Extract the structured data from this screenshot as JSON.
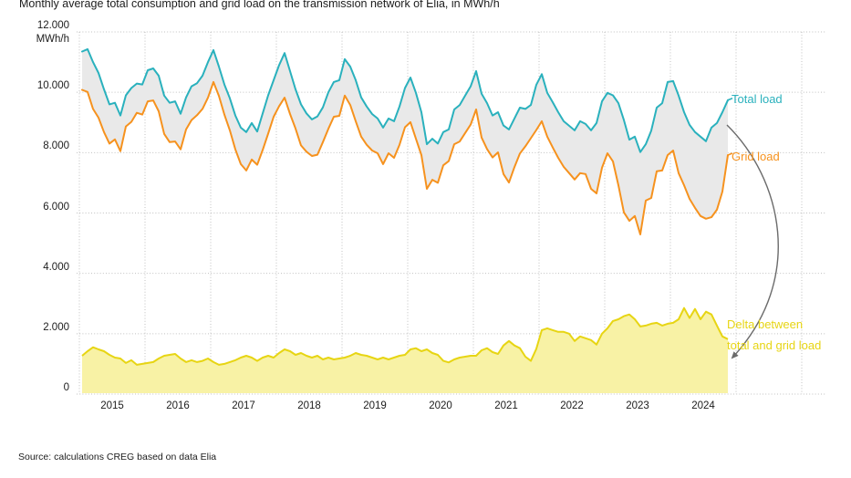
{
  "title": "Monthly average total consumption and grid load on the transmission network of Elia, in MWh/h",
  "source": "Source: calculations CREG based on data Elia",
  "y_axis": {
    "unit": "MWh/h",
    "ticks": [
      {
        "label": "12.000",
        "value": 12000
      },
      {
        "label": "10.000",
        "value": 10000
      },
      {
        "label": "8.000",
        "value": 8000
      },
      {
        "label": "6.000",
        "value": 6000
      },
      {
        "label": "4.000",
        "value": 4000
      },
      {
        "label": "2.000",
        "value": 2000
      },
      {
        "label": "0",
        "value": 0
      }
    ]
  },
  "colors": {
    "total": "#2ab1bd",
    "grid_load": "#f6921e",
    "delta_line": "#e7d513",
    "delta_fill": "#f8f2a5",
    "band_fill": "#e9e9e9",
    "gridline": "#c0c0c0",
    "arrow": "#6b6b6b",
    "text": "#1c1c1c"
  },
  "chart_data": {
    "type": "line-area",
    "x_start": "2015-01",
    "x_end": "2024-11",
    "x_years": [
      2015,
      2016,
      2017,
      2018,
      2019,
      2020,
      2021,
      2022,
      2023,
      2024
    ],
    "ylim": [
      0,
      12000
    ],
    "grid": "dotted",
    "labels": {
      "total": "Total load",
      "grid": "Grid load",
      "delta_line1": "Delta between",
      "delta_line2": "total and grid load"
    },
    "series": [
      {
        "name": "Total load",
        "unit": "MWh/h",
        "values": [
          11350,
          11430,
          11000,
          10640,
          10100,
          9600,
          9650,
          9230,
          9900,
          10140,
          10290,
          10260,
          10730,
          10790,
          10550,
          9890,
          9650,
          9700,
          9290,
          9830,
          10200,
          10300,
          10550,
          11000,
          11400,
          10850,
          10260,
          9800,
          9230,
          8830,
          8680,
          8980,
          8700,
          9300,
          9900,
          10400,
          10900,
          11300,
          10700,
          10100,
          9600,
          9300,
          9100,
          9200,
          9500,
          10000,
          10340,
          10400,
          11100,
          10850,
          10400,
          9830,
          9530,
          9280,
          9130,
          8830,
          9130,
          9040,
          9530,
          10140,
          10490,
          9980,
          9340,
          8280,
          8460,
          8300,
          8680,
          8770,
          9430,
          9580,
          9890,
          10200,
          10700,
          9950,
          9640,
          9230,
          9340,
          8900,
          8770,
          9130,
          9490,
          9450,
          9580,
          10250,
          10600,
          9980,
          9670,
          9340,
          9040,
          8890,
          8740,
          9040,
          8950,
          8740,
          8980,
          9700,
          9980,
          9900,
          9640,
          9080,
          8430,
          8530,
          8020,
          8280,
          8730,
          9490,
          9640,
          10340,
          10370,
          9890,
          9340,
          8920,
          8680,
          8530,
          8380,
          8830,
          8980,
          9340,
          9740
        ]
      },
      {
        "name": "Grid load",
        "unit": "MWh/h",
        "values": [
          10080,
          10010,
          9450,
          9160,
          8680,
          8300,
          8440,
          8050,
          8870,
          9020,
          9320,
          9260,
          9700,
          9730,
          9370,
          8620,
          8350,
          8370,
          8110,
          8770,
          9080,
          9240,
          9450,
          9820,
          10340,
          9880,
          9260,
          8740,
          8110,
          7620,
          7410,
          7770,
          7600,
          8090,
          8630,
          9190,
          9540,
          9820,
          9280,
          8800,
          8240,
          8030,
          7890,
          7930,
          8350,
          8790,
          9190,
          9220,
          9890,
          9580,
          9040,
          8530,
          8260,
          8070,
          7980,
          7620,
          7980,
          7830,
          8260,
          8840,
          9010,
          8460,
          7920,
          6800,
          7100,
          7000,
          7580,
          7720,
          8280,
          8370,
          8650,
          8930,
          9430,
          8500,
          8120,
          7840,
          8010,
          7290,
          7010,
          7520,
          7970,
          8210,
          8480,
          8750,
          9040,
          8530,
          8170,
          7830,
          7530,
          7320,
          7110,
          7320,
          7290,
          6800,
          6650,
          7500,
          7980,
          7710,
          6920,
          6020,
          5740,
          5900,
          5290,
          6410,
          6500,
          7380,
          7410,
          7920,
          8070,
          7320,
          6920,
          6470,
          6170,
          5900,
          5810,
          5860,
          6110,
          6710,
          7920
        ]
      },
      {
        "name": "Delta between total and grid load",
        "unit": "MWh/h",
        "values": [
          1270,
          1420,
          1550,
          1480,
          1420,
          1300,
          1210,
          1180,
          1030,
          1120,
          970,
          1000,
          1030,
          1060,
          1180,
          1270,
          1300,
          1330,
          1180,
          1060,
          1120,
          1060,
          1100,
          1180,
          1060,
          970,
          1000,
          1060,
          1120,
          1210,
          1270,
          1210,
          1100,
          1210,
          1270,
          1210,
          1360,
          1480,
          1420,
          1300,
          1360,
          1270,
          1210,
          1270,
          1150,
          1210,
          1150,
          1180,
          1210,
          1270,
          1360,
          1300,
          1270,
          1210,
          1150,
          1210,
          1150,
          1210,
          1270,
          1300,
          1480,
          1520,
          1420,
          1480,
          1360,
          1300,
          1100,
          1050,
          1150,
          1210,
          1240,
          1270,
          1270,
          1450,
          1520,
          1390,
          1330,
          1610,
          1760,
          1610,
          1520,
          1240,
          1100,
          1500,
          2120,
          2180,
          2120,
          2060,
          2060,
          2000,
          1760,
          1910,
          1850,
          1790,
          1640,
          2000,
          2180,
          2420,
          2480,
          2580,
          2640,
          2480,
          2240,
          2270,
          2330,
          2360,
          2270,
          2330,
          2360,
          2480,
          2850,
          2520,
          2820,
          2480,
          2730,
          2640,
          2270,
          1910,
          1820
        ]
      }
    ]
  }
}
